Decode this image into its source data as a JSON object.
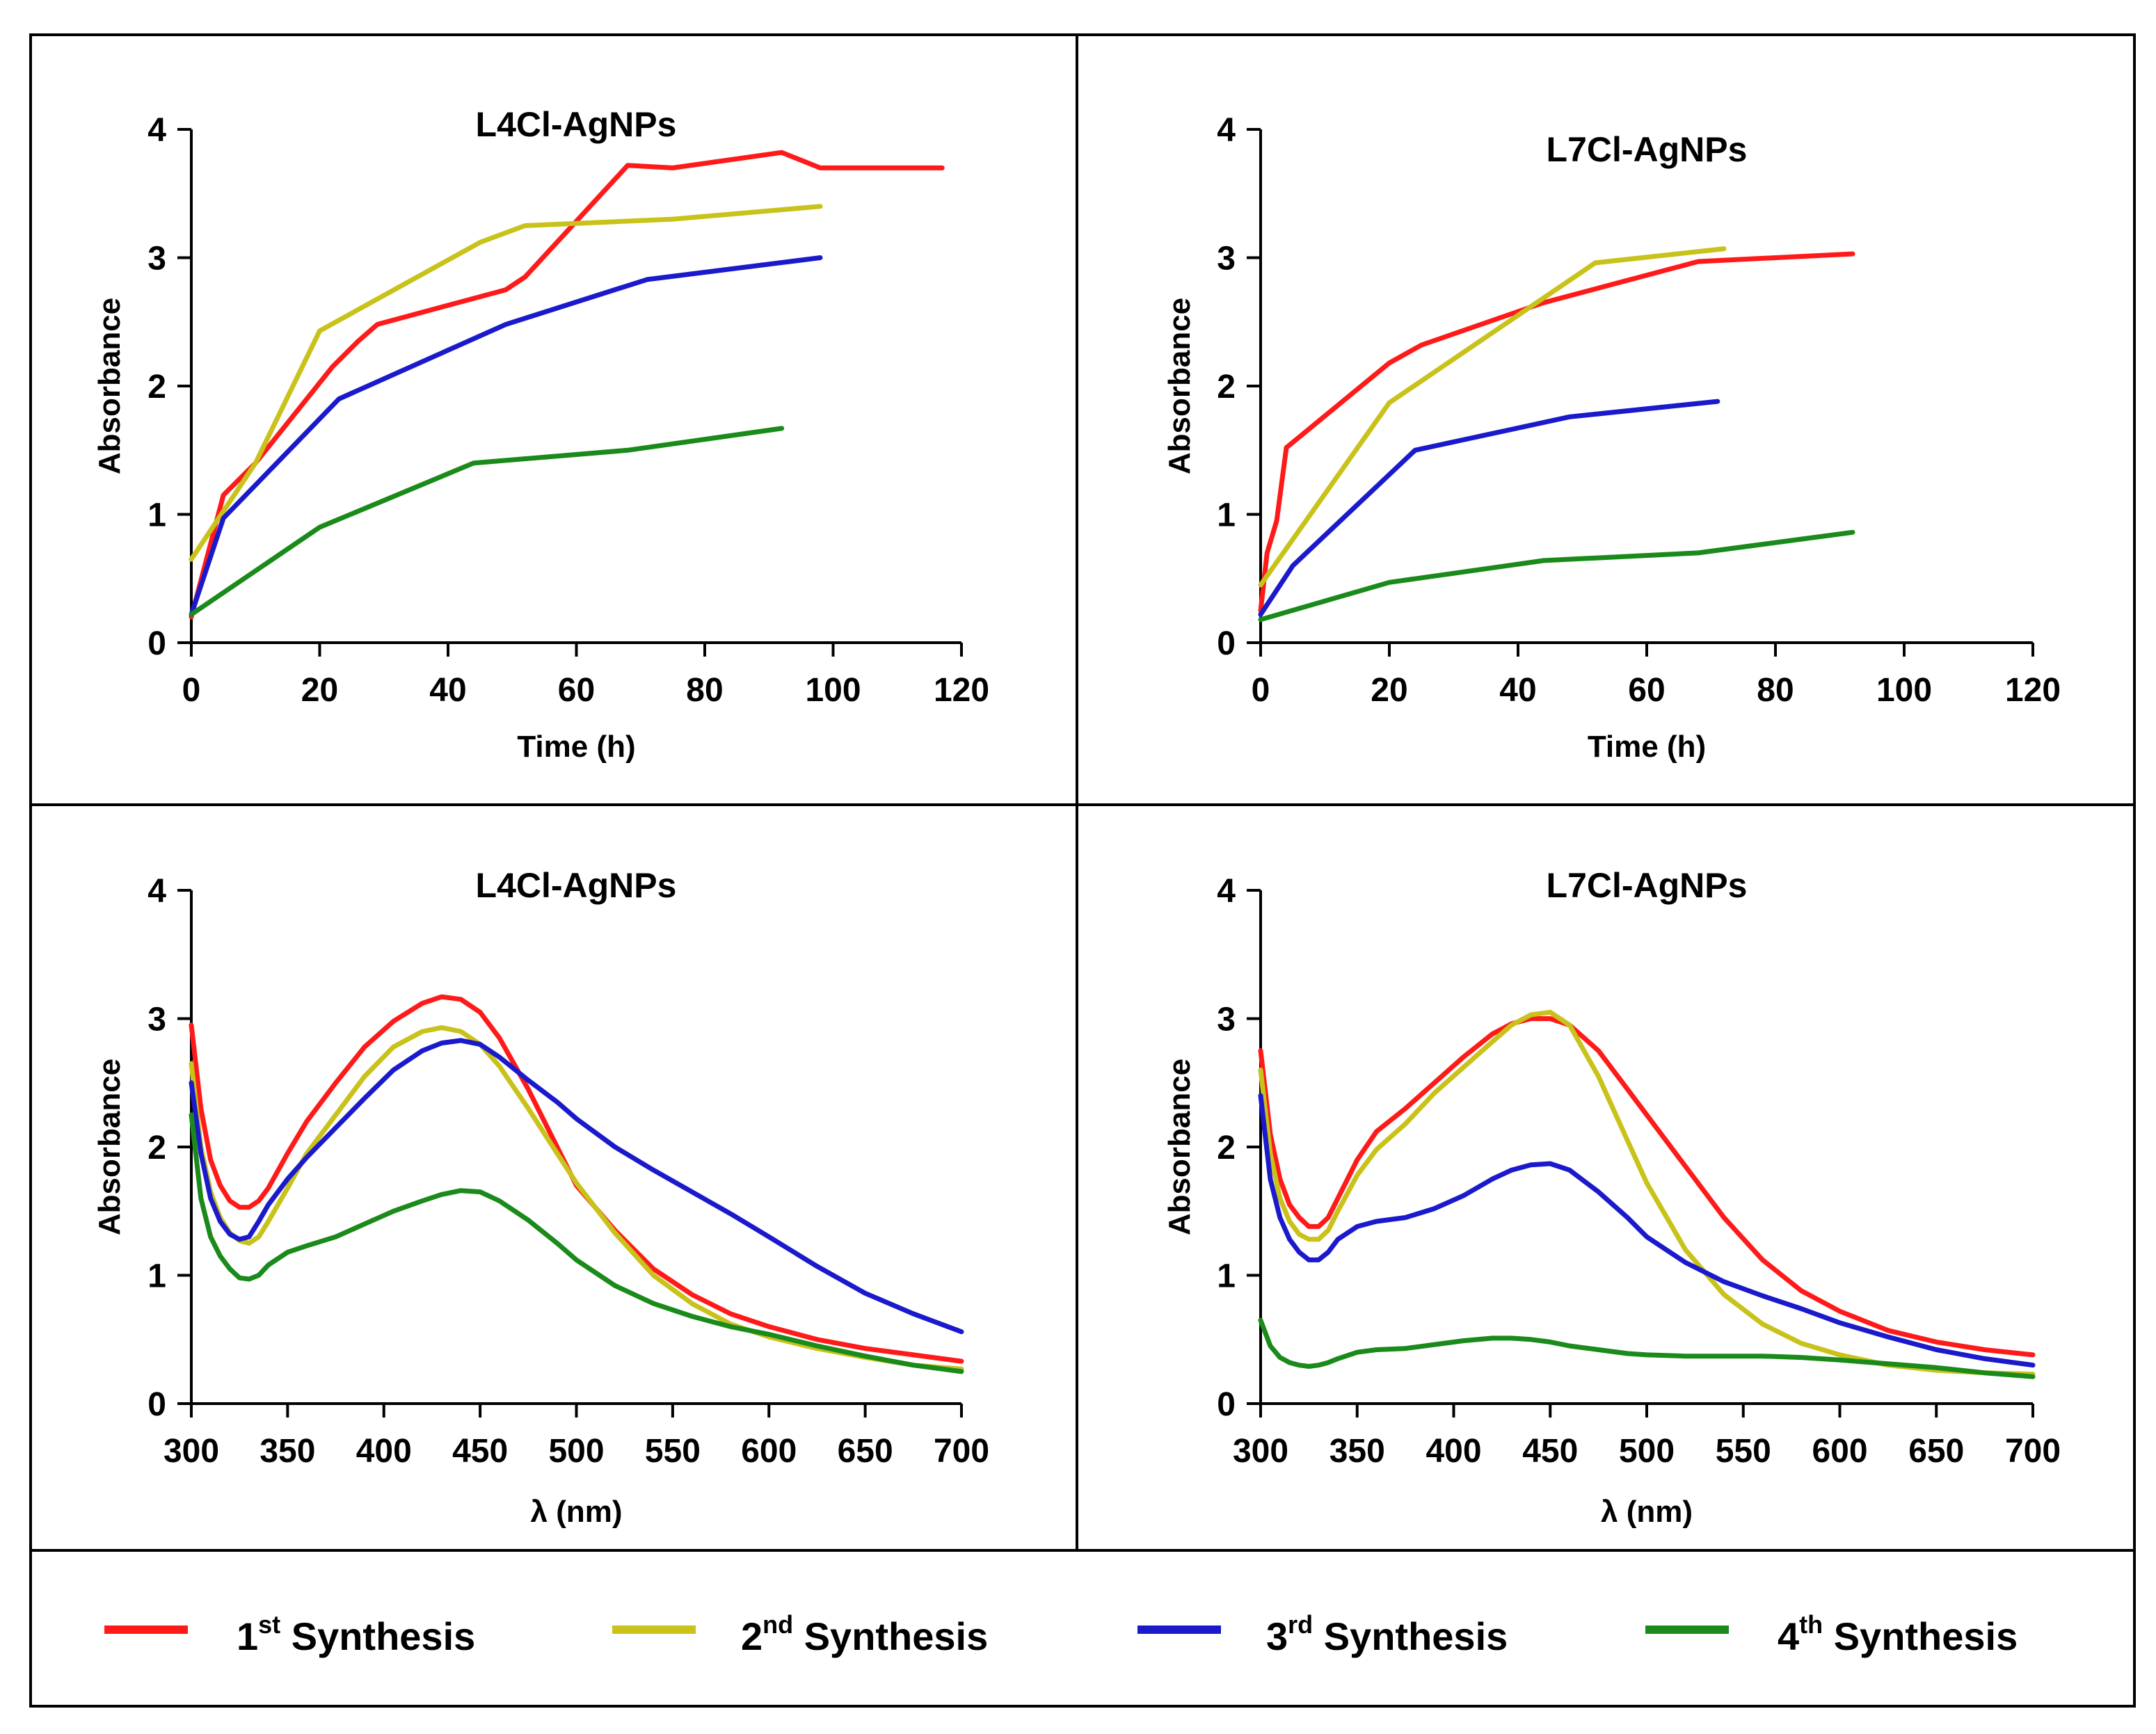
{
  "colors": {
    "s1": "#ff1a1a",
    "s2": "#c8c21a",
    "s3": "#1a1acc",
    "s4": "#1a8a1a"
  },
  "legend": [
    {
      "num": "1",
      "sup": "st",
      "word": " Synthesis",
      "color_key": "s1"
    },
    {
      "num": "2",
      "sup": "nd",
      "word": " Synthesis",
      "color_key": "s2"
    },
    {
      "num": "3",
      "sup": "rd",
      "word": " Synthesis",
      "color_key": "s3"
    },
    {
      "num": "4",
      "sup": "th",
      "word": " Synthesis",
      "color_key": "s4"
    }
  ],
  "chart_data": [
    {
      "type": "line",
      "title": "L4Cl-AgNPs",
      "xlabel": "Time (h)",
      "ylabel": "Absorbance",
      "xlim": [
        0,
        120
      ],
      "ylim": [
        0,
        4
      ],
      "xticks": [
        0,
        20,
        40,
        60,
        80,
        100,
        120
      ],
      "yticks": [
        0,
        1,
        2,
        3,
        4
      ],
      "series": [
        {
          "name": "1st Synthesis",
          "color_key": "s1",
          "x": [
            0,
            5,
            10,
            22,
            26,
            29,
            49,
            52,
            68,
            75,
            92,
            98,
            117
          ],
          "y": [
            0.2,
            1.15,
            1.4,
            2.15,
            2.35,
            2.48,
            2.75,
            2.85,
            3.72,
            3.7,
            3.82,
            3.7,
            3.7
          ]
        },
        {
          "name": "2nd Synthesis",
          "color_key": "s2",
          "x": [
            0,
            10,
            20,
            45,
            52,
            75,
            98
          ],
          "y": [
            0.65,
            1.4,
            2.43,
            3.12,
            3.25,
            3.3,
            3.4
          ]
        },
        {
          "name": "3rd Synthesis",
          "color_key": "s3",
          "x": [
            0,
            5,
            23,
            49,
            71,
            98
          ],
          "y": [
            0.22,
            0.97,
            1.9,
            2.48,
            2.83,
            3.0
          ]
        },
        {
          "name": "4th Synthesis",
          "color_key": "s4",
          "x": [
            0,
            20,
            44,
            68,
            92
          ],
          "y": [
            0.22,
            0.9,
            1.4,
            1.5,
            1.67
          ]
        }
      ]
    },
    {
      "type": "line",
      "title": "L7Cl-AgNPs",
      "xlabel": "Time (h)",
      "ylabel": "Absorbance",
      "xlim": [
        0,
        120
      ],
      "ylim": [
        0,
        4
      ],
      "xticks": [
        0,
        20,
        40,
        60,
        80,
        100,
        120
      ],
      "yticks": [
        0,
        1,
        2,
        3,
        4
      ],
      "series": [
        {
          "name": "1st Synthesis",
          "color_key": "s1",
          "x": [
            0,
            1,
            2.5,
            4,
            20,
            25,
            44,
            68,
            92
          ],
          "y": [
            0.25,
            0.7,
            0.95,
            1.52,
            2.18,
            2.32,
            2.65,
            2.97,
            3.03
          ]
        },
        {
          "name": "2nd Synthesis",
          "color_key": "s2",
          "x": [
            0,
            20,
            52,
            72
          ],
          "y": [
            0.45,
            1.87,
            2.96,
            3.07
          ]
        },
        {
          "name": "3rd Synthesis",
          "color_key": "s3",
          "x": [
            0,
            5,
            24,
            48,
            71
          ],
          "y": [
            0.22,
            0.6,
            1.5,
            1.76,
            1.88
          ]
        },
        {
          "name": "4th Synthesis",
          "color_key": "s4",
          "x": [
            0,
            20,
            44,
            68,
            92
          ],
          "y": [
            0.18,
            0.47,
            0.64,
            0.7,
            0.86
          ]
        }
      ]
    },
    {
      "type": "line",
      "title": "L4Cl-AgNPs",
      "xlabel": "λ (nm)",
      "ylabel": "Absorbance",
      "xlim": [
        300,
        700
      ],
      "ylim": [
        0,
        4
      ],
      "xticks": [
        300,
        350,
        400,
        450,
        500,
        550,
        600,
        650,
        700
      ],
      "yticks": [
        0,
        1,
        2,
        3,
        4
      ],
      "series": [
        {
          "name": "1st Synthesis",
          "color_key": "s1",
          "x": [
            300,
            305,
            310,
            315,
            320,
            325,
            330,
            335,
            340,
            350,
            360,
            375,
            390,
            405,
            420,
            430,
            440,
            450,
            460,
            475,
            490,
            500,
            520,
            540,
            560,
            580,
            600,
            625,
            650,
            675,
            700
          ],
          "y": [
            2.95,
            2.3,
            1.9,
            1.7,
            1.58,
            1.53,
            1.53,
            1.58,
            1.68,
            1.95,
            2.2,
            2.5,
            2.78,
            2.98,
            3.12,
            3.17,
            3.15,
            3.05,
            2.85,
            2.45,
            2.0,
            1.7,
            1.35,
            1.05,
            0.85,
            0.7,
            0.6,
            0.5,
            0.43,
            0.38,
            0.33
          ]
        },
        {
          "name": "2nd Synthesis",
          "color_key": "s2",
          "x": [
            300,
            305,
            310,
            315,
            320,
            325,
            330,
            335,
            340,
            350,
            360,
            375,
            390,
            405,
            420,
            430,
            440,
            450,
            460,
            475,
            490,
            500,
            520,
            540,
            560,
            580,
            600,
            625,
            650,
            675,
            700
          ],
          "y": [
            2.65,
            2.0,
            1.65,
            1.45,
            1.33,
            1.27,
            1.25,
            1.3,
            1.42,
            1.68,
            1.95,
            2.25,
            2.55,
            2.78,
            2.9,
            2.93,
            2.9,
            2.8,
            2.63,
            2.3,
            1.95,
            1.72,
            1.33,
            1.0,
            0.78,
            0.62,
            0.52,
            0.43,
            0.36,
            0.3,
            0.27
          ]
        },
        {
          "name": "3rd Synthesis",
          "color_key": "s3",
          "x": [
            300,
            305,
            310,
            315,
            320,
            325,
            330,
            335,
            340,
            350,
            360,
            375,
            390,
            405,
            420,
            430,
            440,
            450,
            460,
            475,
            490,
            500,
            520,
            540,
            560,
            580,
            600,
            625,
            650,
            675,
            700
          ],
          "y": [
            2.5,
            1.95,
            1.6,
            1.42,
            1.32,
            1.28,
            1.3,
            1.42,
            1.55,
            1.75,
            1.92,
            2.15,
            2.38,
            2.6,
            2.75,
            2.81,
            2.83,
            2.8,
            2.7,
            2.52,
            2.35,
            2.22,
            2.0,
            1.82,
            1.65,
            1.48,
            1.3,
            1.07,
            0.86,
            0.7,
            0.56
          ]
        },
        {
          "name": "4th Synthesis",
          "color_key": "s4",
          "x": [
            300,
            305,
            310,
            315,
            320,
            325,
            330,
            335,
            340,
            350,
            360,
            375,
            390,
            405,
            420,
            430,
            440,
            450,
            460,
            475,
            490,
            500,
            520,
            540,
            560,
            580,
            600,
            625,
            650,
            675,
            700
          ],
          "y": [
            2.25,
            1.6,
            1.3,
            1.15,
            1.05,
            0.98,
            0.97,
            1.0,
            1.08,
            1.18,
            1.23,
            1.3,
            1.4,
            1.5,
            1.58,
            1.63,
            1.66,
            1.65,
            1.58,
            1.43,
            1.25,
            1.12,
            0.92,
            0.78,
            0.68,
            0.6,
            0.54,
            0.45,
            0.37,
            0.3,
            0.25
          ]
        }
      ]
    },
    {
      "type": "line",
      "title": "L7Cl-AgNPs",
      "xlabel": "λ (nm)",
      "ylabel": "Absorbance",
      "xlim": [
        300,
        700
      ],
      "ylim": [
        0,
        4
      ],
      "xticks": [
        300,
        350,
        400,
        450,
        500,
        550,
        600,
        650,
        700
      ],
      "yticks": [
        0,
        1,
        2,
        3,
        4
      ],
      "series": [
        {
          "name": "1st Synthesis",
          "color_key": "s1",
          "x": [
            300,
            305,
            310,
            315,
            320,
            325,
            330,
            335,
            340,
            350,
            360,
            375,
            390,
            405,
            420,
            430,
            440,
            450,
            460,
            475,
            490,
            500,
            520,
            540,
            560,
            580,
            600,
            625,
            650,
            675,
            700
          ],
          "y": [
            2.75,
            2.1,
            1.75,
            1.55,
            1.45,
            1.38,
            1.38,
            1.45,
            1.6,
            1.9,
            2.12,
            2.3,
            2.5,
            2.7,
            2.88,
            2.96,
            3.0,
            3.0,
            2.95,
            2.75,
            2.45,
            2.25,
            1.85,
            1.45,
            1.12,
            0.88,
            0.72,
            0.57,
            0.48,
            0.42,
            0.38
          ]
        },
        {
          "name": "2nd Synthesis",
          "color_key": "s2",
          "x": [
            300,
            305,
            310,
            315,
            320,
            325,
            330,
            335,
            340,
            350,
            360,
            375,
            390,
            405,
            420,
            430,
            440,
            450,
            460,
            475,
            490,
            500,
            520,
            540,
            560,
            580,
            600,
            625,
            650,
            675,
            700
          ],
          "y": [
            2.6,
            1.95,
            1.6,
            1.42,
            1.32,
            1.28,
            1.28,
            1.35,
            1.5,
            1.78,
            1.98,
            2.18,
            2.42,
            2.62,
            2.82,
            2.95,
            3.03,
            3.05,
            2.95,
            2.55,
            2.05,
            1.72,
            1.2,
            0.85,
            0.62,
            0.47,
            0.38,
            0.3,
            0.26,
            0.24,
            0.23
          ]
        },
        {
          "name": "3rd Synthesis",
          "color_key": "s3",
          "x": [
            300,
            305,
            310,
            315,
            320,
            325,
            330,
            335,
            340,
            350,
            360,
            375,
            390,
            405,
            420,
            430,
            440,
            450,
            460,
            475,
            490,
            500,
            520,
            540,
            560,
            580,
            600,
            625,
            650,
            675,
            700
          ],
          "y": [
            2.4,
            1.75,
            1.45,
            1.28,
            1.18,
            1.12,
            1.12,
            1.18,
            1.28,
            1.38,
            1.42,
            1.45,
            1.52,
            1.62,
            1.75,
            1.82,
            1.86,
            1.87,
            1.82,
            1.65,
            1.45,
            1.3,
            1.1,
            0.95,
            0.84,
            0.74,
            0.63,
            0.52,
            0.42,
            0.35,
            0.3
          ]
        },
        {
          "name": "4th Synthesis",
          "color_key": "s4",
          "x": [
            300,
            305,
            310,
            315,
            320,
            325,
            330,
            335,
            340,
            350,
            360,
            375,
            390,
            405,
            420,
            430,
            440,
            450,
            460,
            475,
            490,
            500,
            520,
            540,
            560,
            580,
            600,
            625,
            650,
            675,
            700
          ],
          "y": [
            0.65,
            0.45,
            0.36,
            0.32,
            0.3,
            0.29,
            0.3,
            0.32,
            0.35,
            0.4,
            0.42,
            0.43,
            0.46,
            0.49,
            0.51,
            0.51,
            0.5,
            0.48,
            0.45,
            0.42,
            0.39,
            0.38,
            0.37,
            0.37,
            0.37,
            0.36,
            0.34,
            0.31,
            0.28,
            0.24,
            0.21
          ]
        }
      ]
    }
  ]
}
